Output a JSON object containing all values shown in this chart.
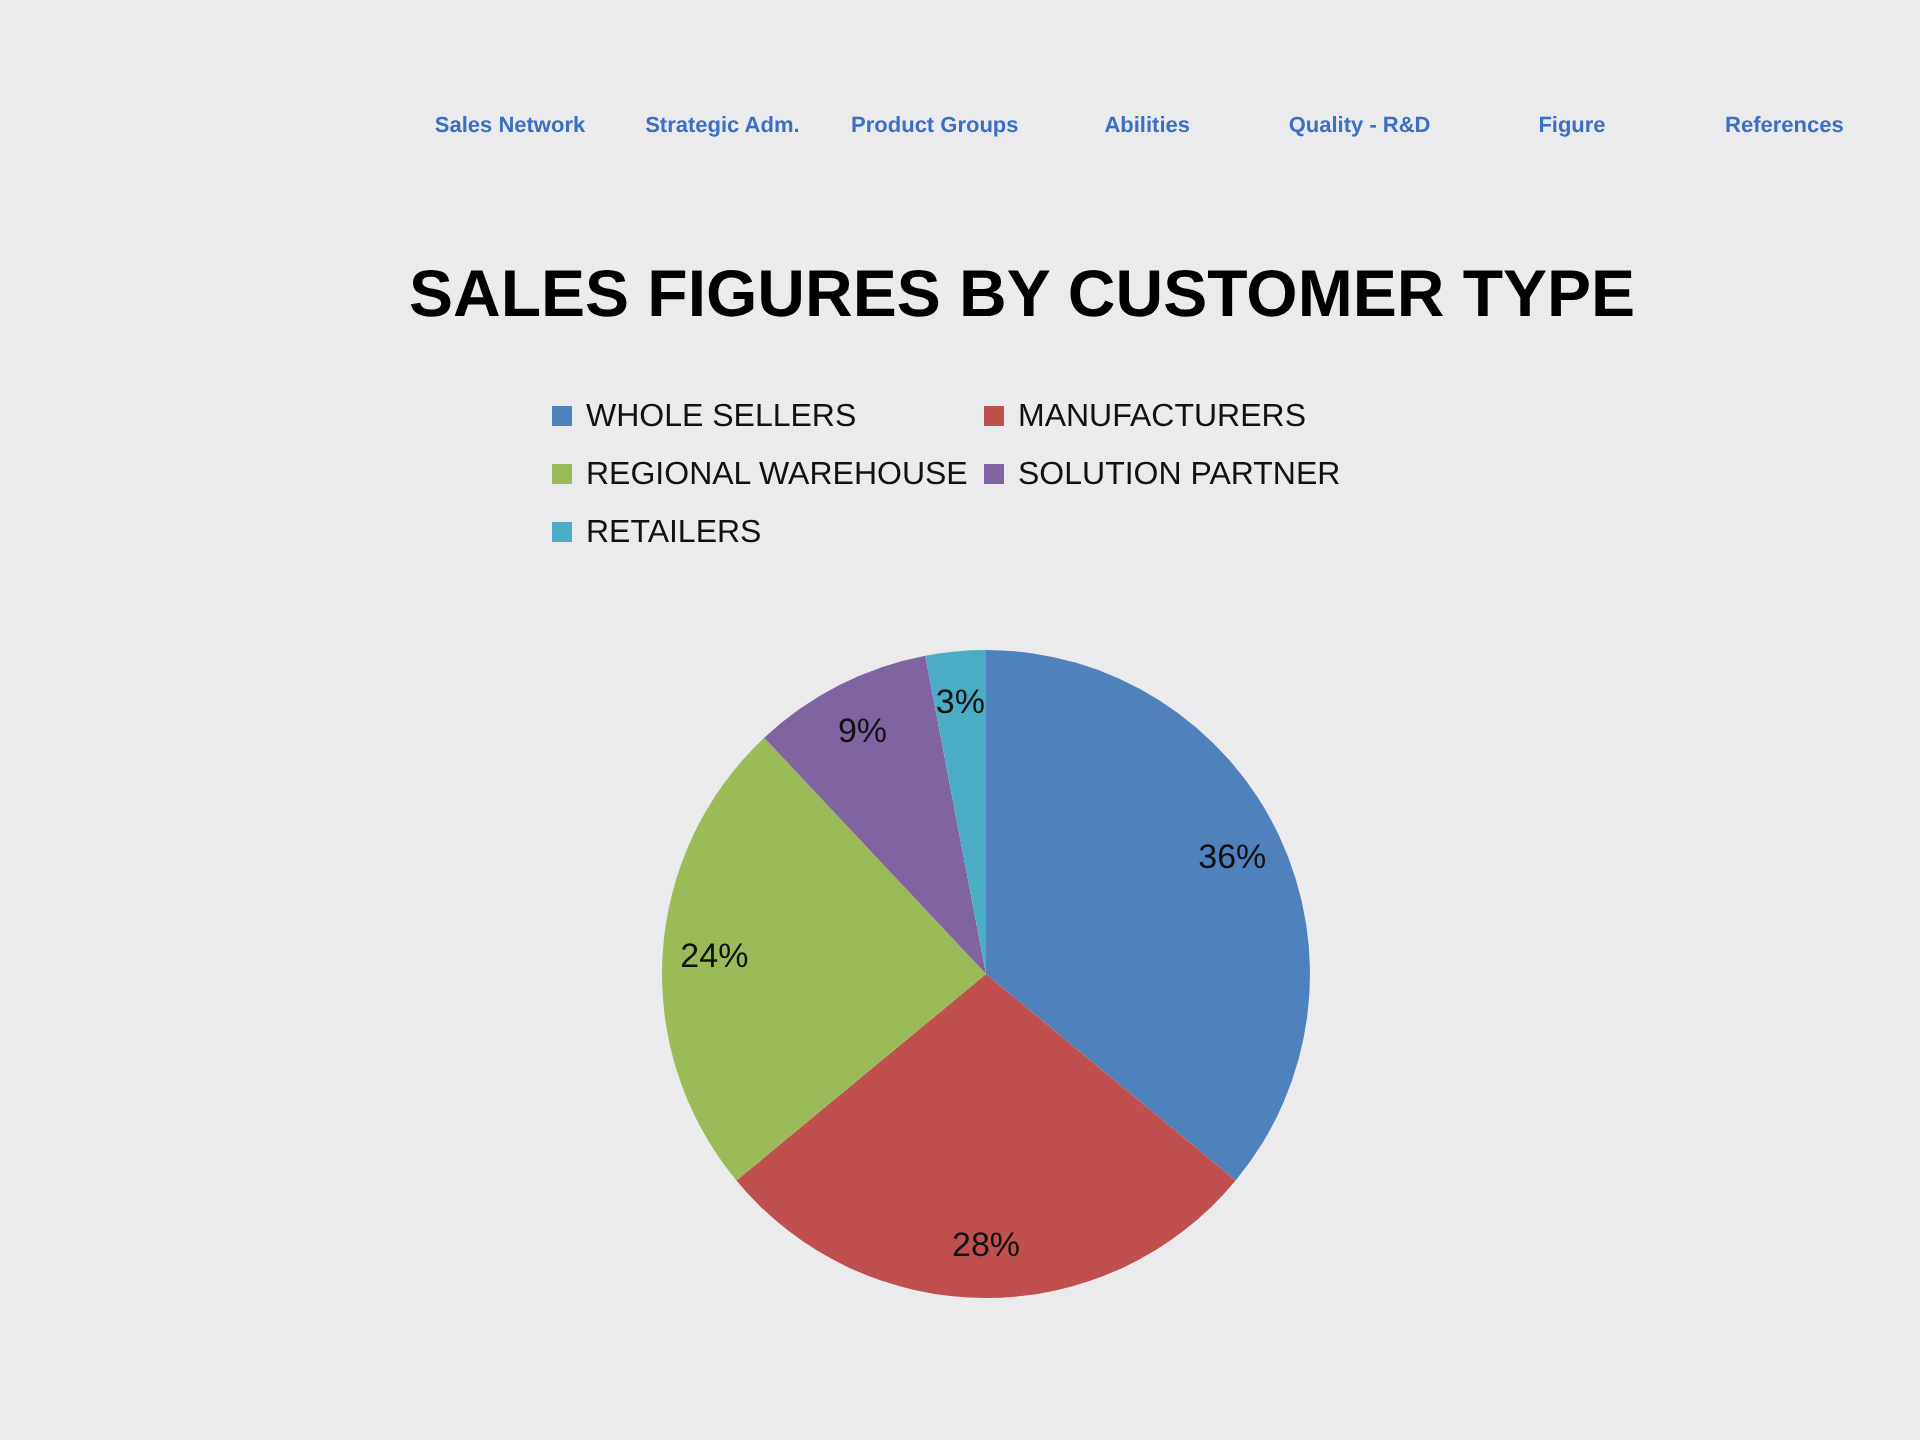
{
  "chart_data": {
    "type": "pie",
    "title": "SALES FIGURES BY CUSTOMER TYPE",
    "categories": [
      "WHOLE SELLERS",
      "MANUFACTURERS",
      "REGIONAL WAREHOUSE",
      "SOLUTION PARTNER",
      "RETAILERS"
    ],
    "values": [
      36,
      28,
      24,
      9,
      3
    ],
    "colors": [
      "#4f81bd",
      "#c0504d",
      "#9bbb59",
      "#8064a2",
      "#4bacc6"
    ],
    "value_labels": [
      "36%",
      "28%",
      "24%",
      "9%",
      "3%"
    ],
    "legend": "top",
    "annotations": [
      "Sales Network",
      "Strategic Adm.",
      "Product Groups",
      "Abilities",
      "Quality - R&D",
      "Figure",
      "References"
    ]
  }
}
